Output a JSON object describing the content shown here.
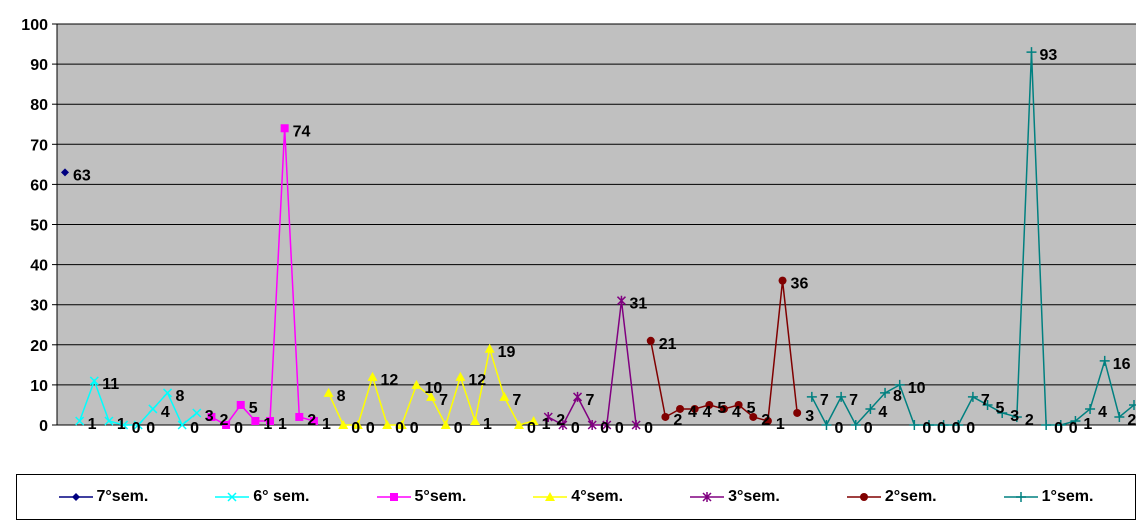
{
  "chart_data": {
    "type": "line",
    "title": "",
    "xlabel": "",
    "ylabel": "",
    "ylim": [
      0,
      100
    ],
    "yticks": [
      0,
      10,
      20,
      30,
      40,
      50,
      60,
      70,
      80,
      90,
      100
    ],
    "grid": true,
    "legend_position": "bottom",
    "plot_background": "#c0c0c0",
    "series": [
      {
        "name": "7°sem.",
        "color": "#000080",
        "marker": "diamond",
        "values": [
          63
        ]
      },
      {
        "name": "6° sem.",
        "color": "#00ffff",
        "marker": "x",
        "values": [
          1,
          11,
          1,
          0,
          0,
          4,
          8,
          0,
          3
        ]
      },
      {
        "name": "5°sem.",
        "color": "#ff00ff",
        "marker": "square",
        "values": [
          2,
          0,
          5,
          1,
          1,
          74,
          2,
          1
        ]
      },
      {
        "name": "4°sem.",
        "color": "#ffff00",
        "marker": "triangle",
        "values": [
          8,
          0,
          0,
          12,
          0,
          0,
          10,
          7,
          0,
          12,
          1,
          19,
          7,
          0,
          1
        ]
      },
      {
        "name": "3°sem.",
        "color": "#800080",
        "marker": "star",
        "values": [
          2,
          0,
          7,
          0,
          0,
          31,
          0
        ]
      },
      {
        "name": "2°sem.",
        "color": "#800000",
        "marker": "circle",
        "values": [
          21,
          2,
          4,
          4,
          5,
          4,
          5,
          2,
          1,
          36,
          3
        ]
      },
      {
        "name": "1°sem.",
        "color": "#008080",
        "marker": "plus",
        "values": [
          7,
          0,
          7,
          0,
          4,
          8,
          10,
          0,
          0,
          0,
          0,
          7,
          5,
          3,
          2,
          93,
          0,
          0,
          1,
          4,
          16,
          2,
          5
        ]
      }
    ]
  }
}
